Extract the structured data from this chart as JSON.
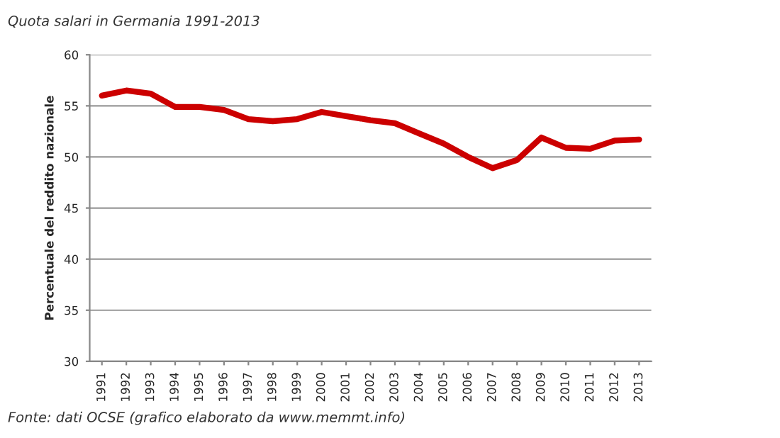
{
  "chart_data": {
    "type": "line",
    "title": "Quota salari in Germania 1991-2013",
    "ylabel": "Percentuale del reddito nazionale",
    "categories": [
      "1991",
      "1992",
      "1993",
      "1994",
      "1995",
      "1996",
      "1997",
      "1998",
      "1999",
      "2000",
      "2001",
      "2002",
      "2003",
      "2004",
      "2005",
      "2006",
      "2007",
      "2008",
      "2009",
      "2010",
      "2011",
      "2012",
      "2013"
    ],
    "series": [
      {
        "color": "#cc0000",
        "values": [
          56.0,
          56.5,
          56.2,
          54.9,
          54.9,
          54.6,
          53.7,
          53.5,
          53.7,
          54.4,
          54.0,
          53.6,
          53.3,
          52.3,
          51.3,
          50.0,
          48.9,
          49.7,
          51.9,
          50.9,
          50.8,
          51.6,
          51.7
        ]
      }
    ],
    "ylim": [
      30,
      60
    ],
    "yticks": [
      30,
      35,
      40,
      45,
      50,
      55,
      60
    ],
    "grid": "y",
    "legend": false,
    "marker": "none",
    "line_style": "solid",
    "annotations": [
      "Fonte: dati OCSE (grafico elaborato da www.memmt.info)"
    ]
  }
}
